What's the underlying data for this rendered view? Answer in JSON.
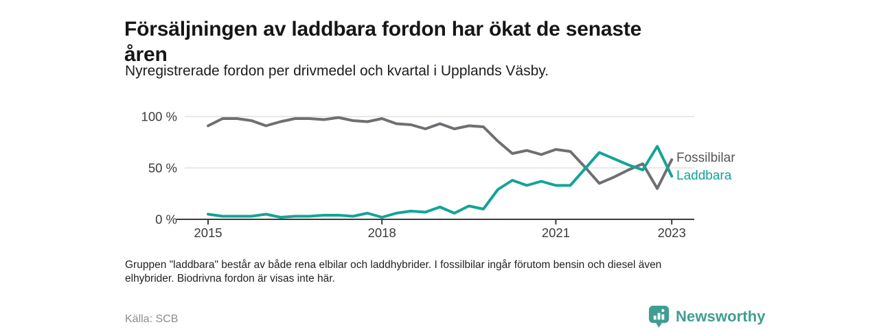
{
  "header": {
    "title_line1": "Försäljningen av laddbara fordon har ökat de senaste",
    "title_line2": "åren",
    "subtitle": "Nyregistrerade fordon per drivmedel och kvartal i Upplands Väsby."
  },
  "chart_data": {
    "type": "line",
    "title": "Försäljningen av laddbara fordon har ökat de senaste åren",
    "subtitle": "Nyregistrerade fordon per drivmedel och kvartal i Upplands Väsby.",
    "x_unit": "quarter",
    "categories": [
      "2015 Q1",
      "2015 Q2",
      "2015 Q3",
      "2015 Q4",
      "2016 Q1",
      "2016 Q2",
      "2016 Q3",
      "2016 Q4",
      "2017 Q1",
      "2017 Q2",
      "2017 Q3",
      "2017 Q4",
      "2018 Q1",
      "2018 Q2",
      "2018 Q3",
      "2018 Q4",
      "2019 Q1",
      "2019 Q2",
      "2019 Q3",
      "2019 Q4",
      "2020 Q1",
      "2020 Q2",
      "2020 Q3",
      "2020 Q4",
      "2021 Q1",
      "2021 Q2",
      "2021 Q3",
      "2021 Q4",
      "2022 Q1",
      "2022 Q2",
      "2022 Q3",
      "2022 Q4",
      "2023 Q1"
    ],
    "series": [
      {
        "name": "Fossilbilar",
        "color": "#6e6e73",
        "label_color": "#55565a",
        "values": [
          91,
          98,
          98,
          96,
          91,
          95,
          98,
          98,
          97,
          99,
          96,
          95,
          98,
          93,
          92,
          88,
          93,
          88,
          91,
          90,
          76,
          64,
          67,
          63,
          68,
          66,
          51,
          35,
          41,
          48,
          54,
          30,
          58
        ]
      },
      {
        "name": "Laddbara",
        "color": "#12a496",
        "label_color": "#12a496",
        "values": [
          5,
          3,
          3,
          3,
          5,
          2,
          3,
          3,
          4,
          4,
          3,
          6,
          2,
          6,
          8,
          7,
          12,
          6,
          13,
          10,
          29,
          38,
          33,
          37,
          33,
          33,
          49,
          65,
          59,
          53,
          48,
          71,
          42
        ]
      }
    ],
    "ylabel": "",
    "xlabel": "",
    "ylim": [
      0,
      100
    ],
    "y_ticks": [
      {
        "value": 0,
        "label": "0 %"
      },
      {
        "value": 50,
        "label": "50 %"
      },
      {
        "value": 100,
        "label": "100 %"
      }
    ],
    "x_ticks": [
      {
        "t": 2015,
        "label": "2015"
      },
      {
        "t": 2018,
        "label": "2018"
      },
      {
        "t": 2021,
        "label": "2021"
      },
      {
        "t": 2023,
        "label": "2023"
      }
    ],
    "grid": "horizontal",
    "legend": "line-end-labels",
    "axis_color": "#3a3a3a",
    "grid_color": "#d9d9d9",
    "tick_label_color": "#3a3a3a"
  },
  "footnote": {
    "line1": "Gruppen \"laddbara\" består av både rena elbilar och laddhybrider. I fossilbilar ingår förutom bensin och diesel även",
    "line2": "elhybrider. Biodrivna fordon är visas inte här."
  },
  "footer": {
    "source": "Källa: SCB",
    "brand": "Newsworthy",
    "brand_color": "#3f9e91"
  }
}
